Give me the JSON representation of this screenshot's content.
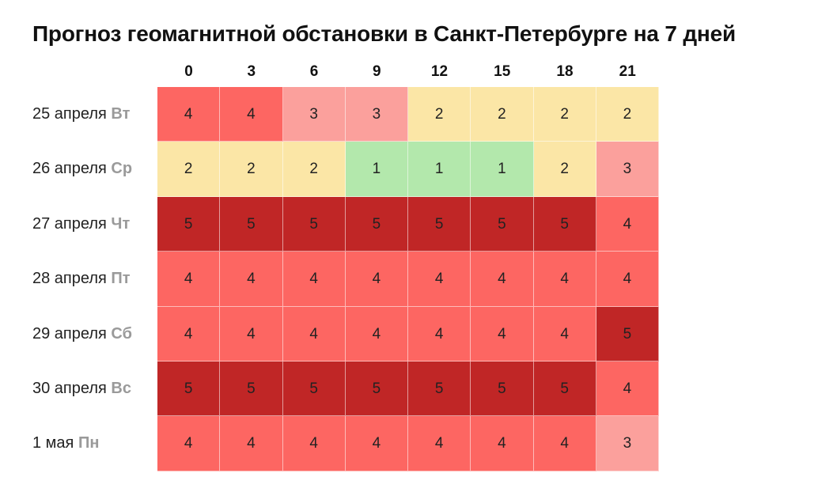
{
  "chart_data": {
    "type": "heatmap",
    "title": "Прогноз геомагнитной обстановки в Санкт-Петербурге на 7 дней",
    "x": [
      "0",
      "3",
      "6",
      "9",
      "12",
      "15",
      "18",
      "21"
    ],
    "rows": [
      {
        "date": "25 апреля",
        "dow": "Вт",
        "values": [
          4,
          4,
          3,
          3,
          2,
          2,
          2,
          2
        ]
      },
      {
        "date": "26 апреля",
        "dow": "Ср",
        "values": [
          2,
          2,
          2,
          1,
          1,
          1,
          2,
          3
        ]
      },
      {
        "date": "27 апреля",
        "dow": "Чт",
        "values": [
          5,
          5,
          5,
          5,
          5,
          5,
          5,
          4
        ]
      },
      {
        "date": "28 апреля",
        "dow": "Пт",
        "values": [
          4,
          4,
          4,
          4,
          4,
          4,
          4,
          4
        ]
      },
      {
        "date": "29 апреля",
        "dow": "Сб",
        "values": [
          4,
          4,
          4,
          4,
          4,
          4,
          4,
          5
        ]
      },
      {
        "date": "30 апреля",
        "dow": "Вс",
        "values": [
          5,
          5,
          5,
          5,
          5,
          5,
          5,
          4
        ]
      },
      {
        "date": "1 мая",
        "dow": "Пн",
        "values": [
          4,
          4,
          4,
          4,
          4,
          4,
          4,
          3
        ]
      }
    ],
    "colors": {
      "1": "#b3e8ac",
      "2": "#fbe6a6",
      "3": "#fba09c",
      "4": "#fd6662",
      "5": "#c02626"
    }
  }
}
